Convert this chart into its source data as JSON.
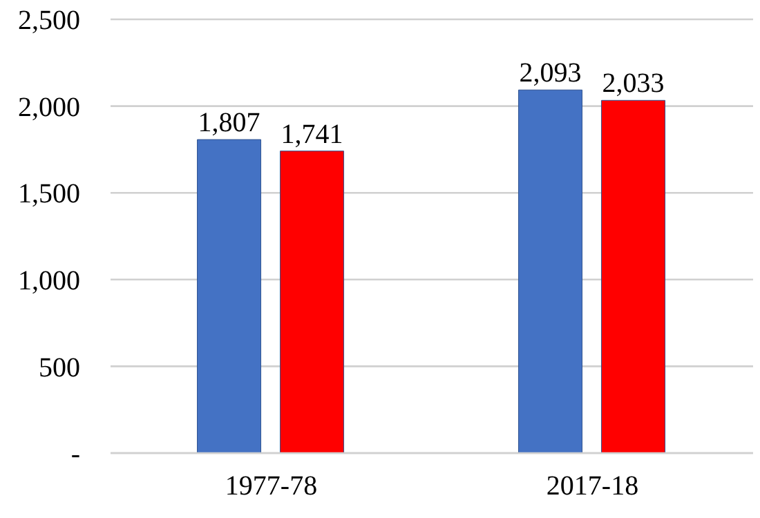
{
  "chart_data": {
    "type": "bar",
    "categories": [
      "1977-78",
      "2017-18"
    ],
    "series": [
      {
        "color": "#4472c4",
        "values": [
          1807,
          2093
        ],
        "value_labels": [
          "1,807",
          "2,093"
        ]
      },
      {
        "color": "#ff0000",
        "values": [
          1741,
          2033
        ],
        "value_labels": [
          "1,741",
          "2,033"
        ]
      }
    ],
    "ylim": [
      0,
      2500
    ],
    "yticks": [
      {
        "value": 0,
        "label": "-"
      },
      500,
      {
        "value": 1000,
        "label": "1,000"
      },
      {
        "value": 1500,
        "label": "1,500"
      },
      {
        "value": 2000,
        "label": "2,000"
      },
      {
        "value": 2500,
        "label": "2,500"
      }
    ],
    "grid": "y",
    "legend": false
  }
}
